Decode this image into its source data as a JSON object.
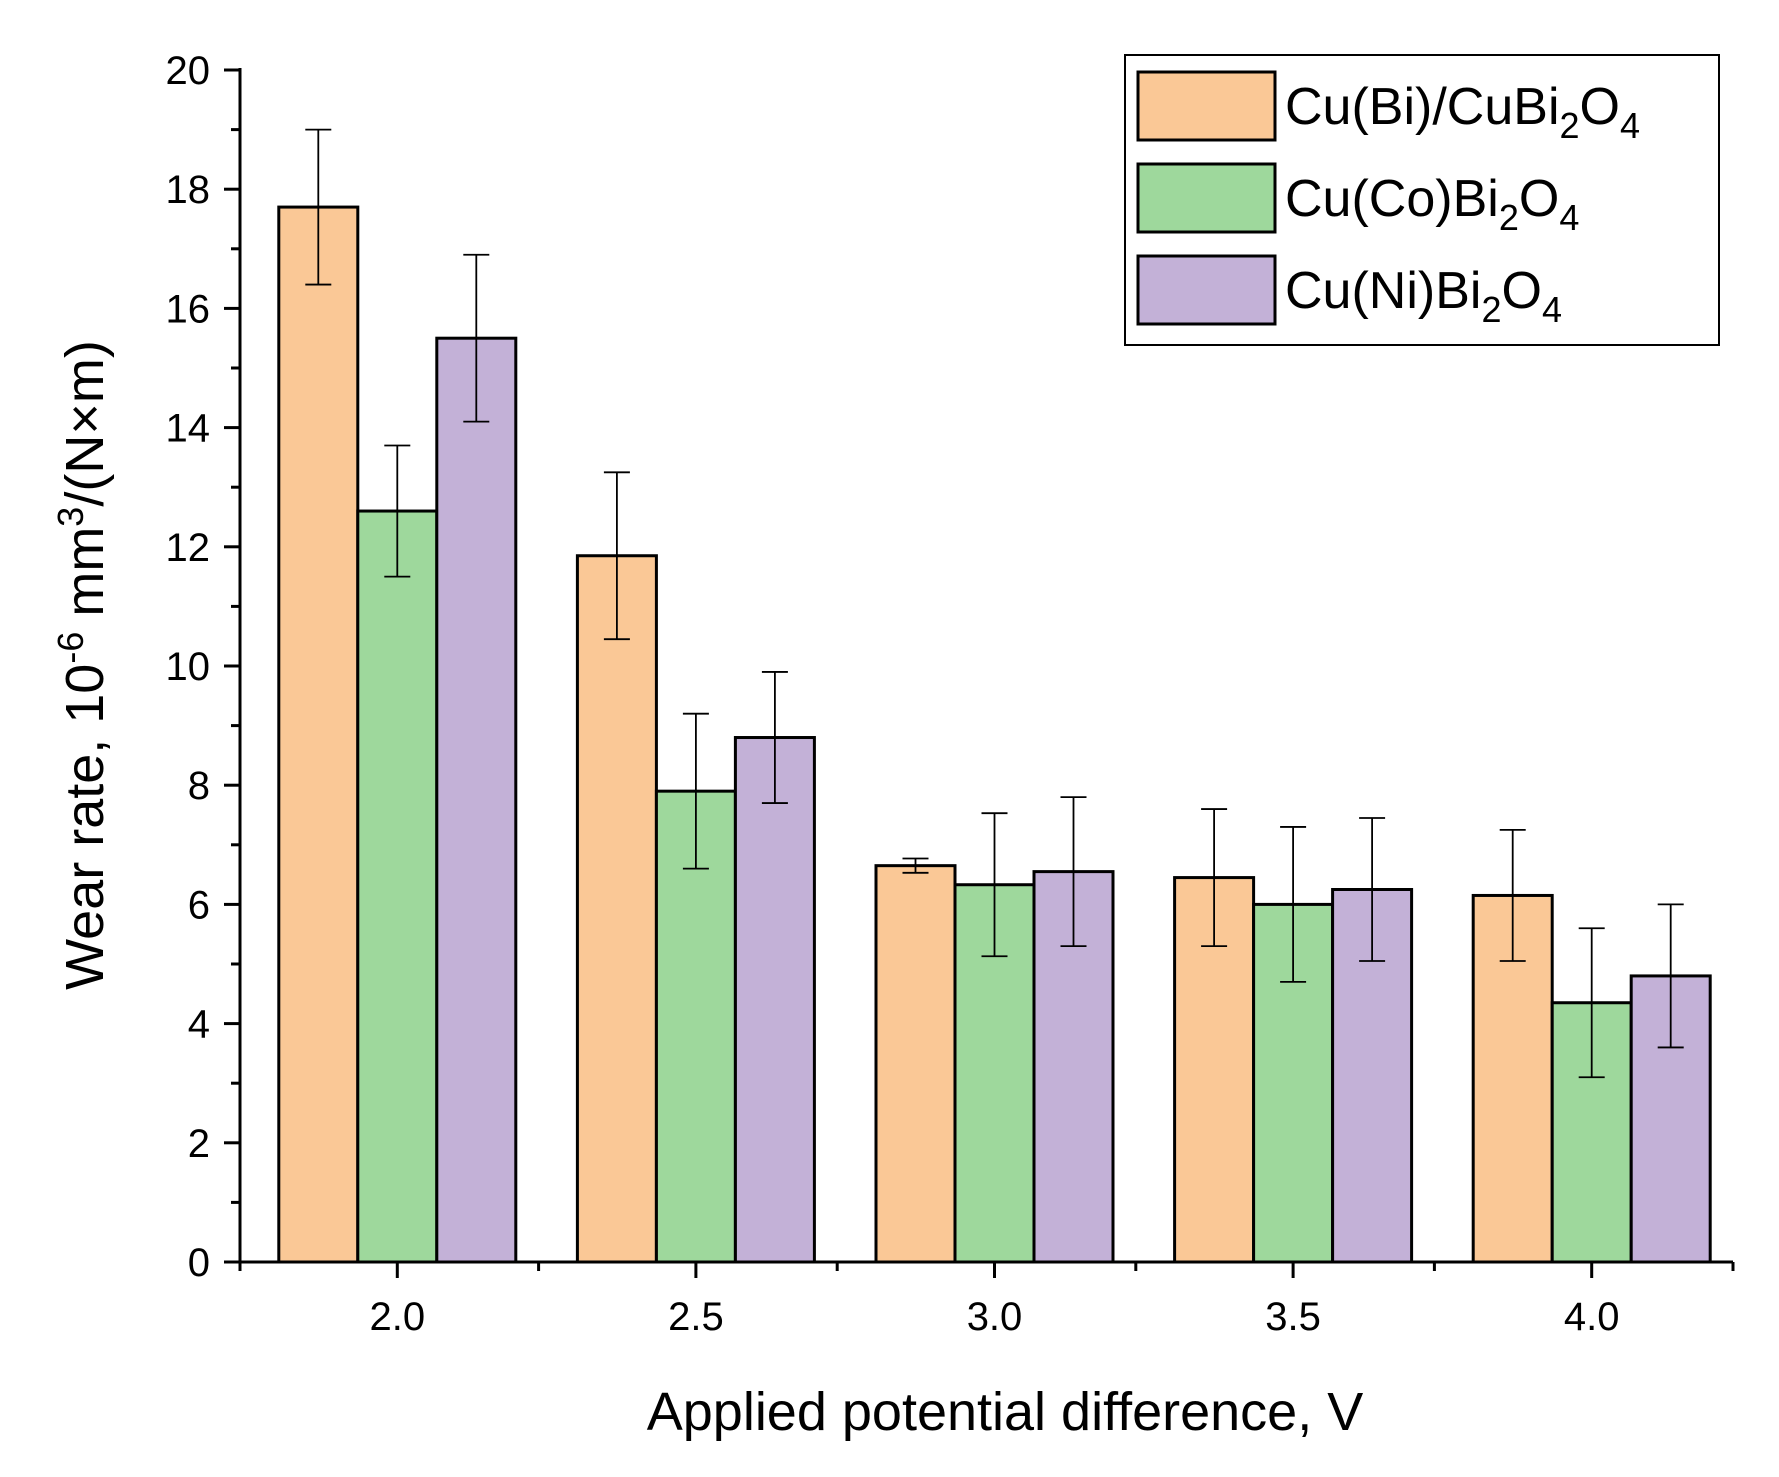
{
  "chart_data": {
    "type": "bar",
    "title": "",
    "xlabel": "Applied potential difference, V",
    "ylabel": "Wear rate, 10<sup>-6</sup> mm<sup>3</sup>/(N×m)",
    "ylabel_parts": {
      "a": "Wear rate, 10",
      "b": "-6",
      "c": " mm",
      "d": "3",
      "e": "/(N×m)"
    },
    "categories": [
      "2.0",
      "2.5",
      "3.0",
      "3.5",
      "4.0"
    ],
    "ylim": [
      0,
      20
    ],
    "yticks": [
      "0",
      "2",
      "4",
      "6",
      "8",
      "10",
      "12",
      "14",
      "16",
      "18",
      "20"
    ],
    "legend_position": "top-right",
    "series": [
      {
        "name": "Cu(Bi)/CuBi2O4",
        "label_parts": [
          "Cu(Bi)/CuBi",
          "2",
          "O",
          "4"
        ],
        "color": "#FAC896",
        "values": [
          17.7,
          11.85,
          6.65,
          6.45,
          6.15
        ],
        "errors": [
          1.3,
          1.4,
          0.12,
          1.15,
          1.1
        ]
      },
      {
        "name": "Cu(Co)Bi2O4",
        "label_parts": [
          "Cu(Co)Bi",
          "2",
          "O",
          "4"
        ],
        "color": "#9ED89C",
        "values": [
          12.6,
          7.9,
          6.33,
          6.0,
          4.35
        ],
        "errors": [
          1.1,
          1.3,
          1.2,
          1.3,
          1.25
        ]
      },
      {
        "name": "Cu(Ni)Bi2O4",
        "label_parts": [
          "Cu(Ni)Bi",
          "2",
          "O",
          "4"
        ],
        "color": "#C3B1D7",
        "values": [
          15.5,
          8.8,
          6.55,
          6.25,
          4.8
        ],
        "errors": [
          1.4,
          1.1,
          1.25,
          1.2,
          1.2
        ]
      }
    ]
  }
}
